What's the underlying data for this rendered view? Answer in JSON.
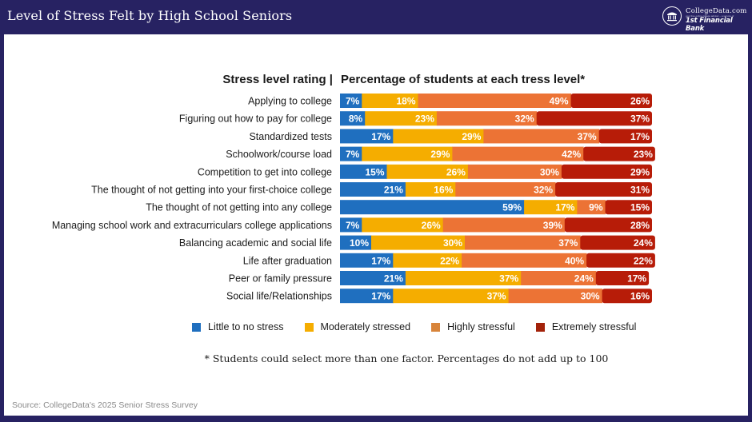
{
  "header": {
    "title": "Level of Stress Felt by High School Seniors",
    "logo": {
      "brand": "CollegeData.com",
      "tagline": "your free online college advisor – a service of",
      "bank": "1st Financial Bank",
      "icon": "building-seal-icon"
    }
  },
  "colors": {
    "header_bg": "#272262",
    "little": "#1f6fbf",
    "moderate": "#f5ad00",
    "high": "#ec7335",
    "extreme": "#b71c08"
  },
  "chart_data": {
    "type": "bar",
    "orientation": "horizontal-stacked",
    "title_left": "Stress level rating |",
    "title_right": "Percentage of students at each tress level*",
    "categories": [
      "Applying to college",
      "Figuring out how to pay for college",
      "Standardized tests",
      "Schoolwork/course load",
      "Competition to get into college",
      "The thought of not getting into your first-choice college",
      "The thought of not getting into any college",
      "Managing school work and extracurriculars college applications",
      "Balancing academic and social life",
      "Life after graduation",
      "Peer or family pressure",
      "Social life/Relationships"
    ],
    "series": [
      {
        "name": "Little to no stress",
        "color": "#1f6fbf",
        "values": [
          7,
          8,
          17,
          7,
          15,
          21,
          59,
          7,
          10,
          17,
          21,
          17
        ]
      },
      {
        "name": "Moderately stressed",
        "color": "#f5ad00",
        "values": [
          18,
          23,
          29,
          29,
          26,
          16,
          17,
          26,
          30,
          22,
          37,
          37
        ]
      },
      {
        "name": "Highly stressful",
        "color": "#ec7335",
        "values": [
          49,
          32,
          37,
          42,
          30,
          32,
          9,
          39,
          37,
          40,
          24,
          30
        ]
      },
      {
        "name": "Extremely stressful",
        "color": "#b71c08",
        "values": [
          26,
          37,
          17,
          23,
          29,
          31,
          15,
          28,
          24,
          22,
          17,
          16
        ]
      }
    ],
    "value_suffix": "%",
    "xlim": [
      0,
      100
    ],
    "grid": false,
    "legend_position": "bottom",
    "footnote": "* Students could select more than one factor. Percentages do not add up to 100",
    "source": "Source: CollegeData's 2025 Senior Stress Survey"
  }
}
